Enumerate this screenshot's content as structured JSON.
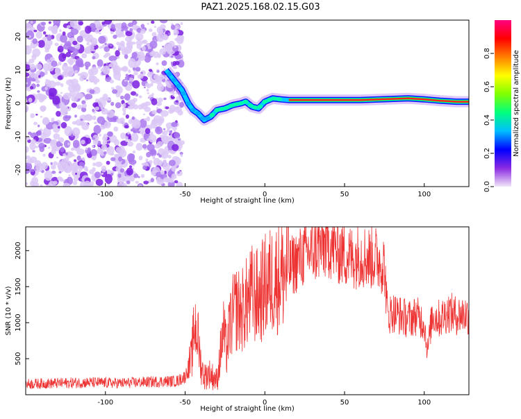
{
  "title": "PAZ1.2025.168.02.15.G03",
  "chart_data": [
    {
      "type": "heatmap",
      "xlabel": "Height of straight line (km)",
      "ylabel": "Frequency (Hz)",
      "xlim": [
        -150,
        128
      ],
      "ylim": [
        -25,
        25
      ],
      "x_ticks": [
        -100,
        -50,
        0,
        50,
        100
      ],
      "y_ticks": [
        -20,
        -10,
        0,
        10,
        20
      ],
      "colorbar": {
        "label": "Normalized spectral amplitude",
        "range": [
          0,
          1
        ],
        "ticks": [
          0.0,
          0.2,
          0.4,
          0.6,
          0.8
        ],
        "tick_labels": [
          "0.0",
          "0.2",
          "0.4",
          "0.6",
          "0.8"
        ],
        "colors": [
          "#f2e6f8",
          "#8a2be2",
          "#0000ff",
          "#00bfff",
          "#00ff7f",
          "#7fff00",
          "#ffff00",
          "#ff7f00",
          "#ff0000",
          "#ff0080"
        ]
      },
      "noise_region_x": [
        -150,
        -52
      ],
      "ridge": {
        "x": [
          -62,
          -57,
          -52,
          -48,
          -45,
          -42,
          -38,
          -34,
          -30,
          -25,
          -20,
          -15,
          -12,
          -8,
          -4,
          0,
          5,
          10,
          15,
          30,
          60,
          90,
          100,
          110,
          120,
          128
        ],
        "freq": [
          10,
          7,
          4,
          0,
          -2,
          -3,
          -5,
          -4,
          -2,
          -1.5,
          -0.5,
          0,
          0.5,
          -1,
          -1.5,
          0.5,
          1.5,
          1.2,
          1,
          1,
          1,
          1.5,
          1.2,
          0.8,
          0.5,
          0.5
        ]
      }
    },
    {
      "type": "line",
      "xlabel": "Height of straight line (km)",
      "ylabel": "SNR (10 * v/v)",
      "xlim": [
        -150,
        128
      ],
      "ylim": [
        0,
        2330
      ],
      "x_ticks": [
        -100,
        -50,
        0,
        50,
        100
      ],
      "y_ticks": [
        500,
        1000,
        1500,
        2000
      ],
      "color": "#ee3333",
      "series": [
        {
          "x": [
            -150,
            -130,
            -110,
            -90,
            -70,
            -55,
            -50,
            -46,
            -44,
            -42,
            -40,
            -38,
            -35,
            -30,
            -26,
            -24,
            -22,
            -20,
            -18,
            -15,
            -12,
            -8,
            -4,
            0,
            5,
            10,
            15,
            20,
            25,
            30,
            35,
            40,
            45,
            50,
            55,
            60,
            65,
            70,
            75,
            77,
            80,
            85,
            90,
            95,
            100,
            102,
            105,
            110,
            115,
            120,
            125,
            128
          ],
          "values": [
            150,
            160,
            170,
            160,
            180,
            190,
            250,
            500,
            1000,
            800,
            400,
            250,
            300,
            200,
            900,
            600,
            950,
            1100,
            1200,
            1150,
            1250,
            1400,
            1350,
            1500,
            1600,
            1650,
            1750,
            1850,
            1950,
            2000,
            2050,
            2100,
            2000,
            1950,
            1900,
            1950,
            1900,
            1900,
            1800,
            1100,
            1150,
            1100,
            1050,
            1100,
            1000,
            600,
            1100,
            1050,
            1150,
            1100,
            1120,
            1100
          ]
        }
      ]
    }
  ]
}
